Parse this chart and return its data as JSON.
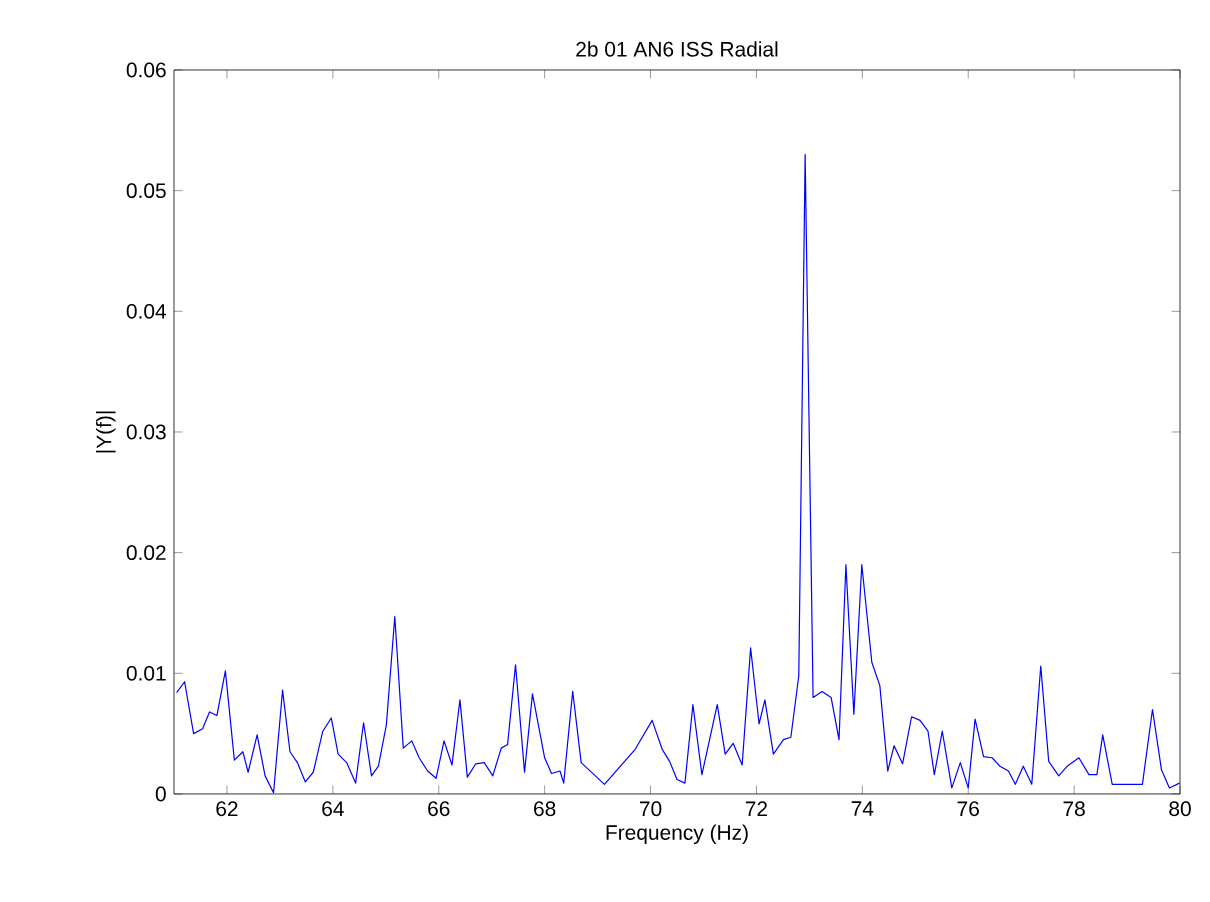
{
  "chart_data": {
    "type": "line",
    "title": "2b 01 AN6 ISS Radial",
    "xlabel": "Frequency (Hz)",
    "ylabel": "|Y(f)|",
    "xlim": [
      61,
      80
    ],
    "ylim": [
      0,
      0.06
    ],
    "xticks": [
      62,
      64,
      66,
      68,
      70,
      72,
      74,
      76,
      78,
      80
    ],
    "yticks": [
      0,
      0.01,
      0.02,
      0.03,
      0.04,
      0.05,
      0.06
    ],
    "grid": false,
    "series": [
      {
        "color": "#0000ff",
        "x": [
          61.05,
          61.2,
          61.37,
          61.54,
          61.67,
          61.81,
          61.97,
          62.14,
          62.3,
          62.4,
          62.57,
          62.72,
          62.88,
          63.05,
          63.19,
          63.33,
          63.48,
          63.63,
          63.81,
          63.97,
          64.1,
          64.26,
          64.43,
          64.58,
          64.73,
          64.86,
          65.01,
          65.17,
          65.33,
          65.49,
          65.63,
          65.79,
          65.95,
          66.1,
          66.25,
          66.4,
          66.54,
          66.7,
          66.86,
          67.02,
          67.18,
          67.3,
          67.45,
          67.62,
          67.77,
          68.0,
          68.13,
          68.29,
          68.36,
          68.53,
          68.69,
          69.13,
          69.71,
          70.03,
          70.22,
          70.36,
          70.5,
          70.65,
          70.8,
          70.97,
          71.26,
          71.41,
          71.56,
          71.73,
          71.89,
          72.05,
          72.16,
          72.32,
          72.51,
          72.65,
          72.8,
          72.92,
          73.07,
          73.24,
          73.41,
          73.56,
          73.69,
          73.84,
          73.99,
          74.18,
          74.33,
          74.48,
          74.6,
          74.76,
          74.93,
          75.09,
          75.24,
          75.36,
          75.51,
          75.69,
          75.85,
          76.0,
          76.13,
          76.29,
          76.45,
          76.6,
          76.76,
          76.89,
          77.04,
          77.2,
          77.37,
          77.52,
          77.71,
          77.87,
          78.09,
          78.28,
          78.43,
          78.54,
          78.72,
          79.29,
          79.48,
          79.65,
          79.8,
          79.99
        ],
        "values": [
          0.0084,
          0.0093,
          0.005,
          0.0054,
          0.0068,
          0.0065,
          0.0102,
          0.0028,
          0.0035,
          0.0018,
          0.0049,
          0.0015,
          0.0001,
          0.0086,
          0.0035,
          0.0026,
          0.001,
          0.0018,
          0.0052,
          0.0063,
          0.0033,
          0.0026,
          0.0009,
          0.0059,
          0.0015,
          0.0023,
          0.0057,
          0.0147,
          0.0038,
          0.0044,
          0.003,
          0.0019,
          0.0013,
          0.0044,
          0.0024,
          0.0078,
          0.0014,
          0.0025,
          0.0026,
          0.0015,
          0.0038,
          0.0041,
          0.0107,
          0.0018,
          0.0083,
          0.003,
          0.0017,
          0.0019,
          0.0009,
          0.0085,
          0.0026,
          0.0008,
          0.0037,
          0.0061,
          0.0037,
          0.0027,
          0.0012,
          0.0009,
          0.0074,
          0.0016,
          0.0074,
          0.0033,
          0.0042,
          0.0024,
          0.0121,
          0.0058,
          0.0078,
          0.0033,
          0.0045,
          0.0047,
          0.0098,
          0.053,
          0.008,
          0.0085,
          0.008,
          0.0045,
          0.019,
          0.0066,
          0.019,
          0.0109,
          0.009,
          0.0019,
          0.004,
          0.0025,
          0.0064,
          0.0061,
          0.0052,
          0.0016,
          0.0052,
          0.0005,
          0.0026,
          0.0005,
          0.0062,
          0.0031,
          0.003,
          0.0023,
          0.0019,
          0.0008,
          0.0023,
          0.0008,
          0.0106,
          0.0027,
          0.0015,
          0.0023,
          0.003,
          0.0016,
          0.0016,
          0.0049,
          0.0008,
          0.0008,
          0.007,
          0.002,
          0.0005,
          0.0009
        ]
      }
    ]
  }
}
